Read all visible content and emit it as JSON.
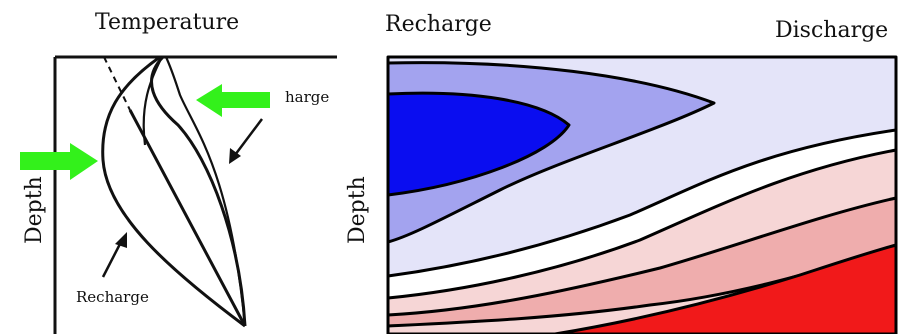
{
  "left_panel": {
    "x_axis_label": "Temperature",
    "y_axis_label": "Depth",
    "discharge_label_partial": "harge",
    "recharge_label": "Recharge"
  },
  "right_panel": {
    "left_label": "Recharge",
    "right_label": "Discharge",
    "y_axis_label": "Depth"
  },
  "colors": {
    "arrow": "#33f11b",
    "deep_blue": "#0a0df0",
    "mid_blue": "#a3a3ef",
    "light_blue": "#e4e4f9",
    "white": "#ffffff",
    "light_red": "#f6d6d6",
    "mid_red": "#efadad",
    "deep_red": "#f1191a"
  }
}
